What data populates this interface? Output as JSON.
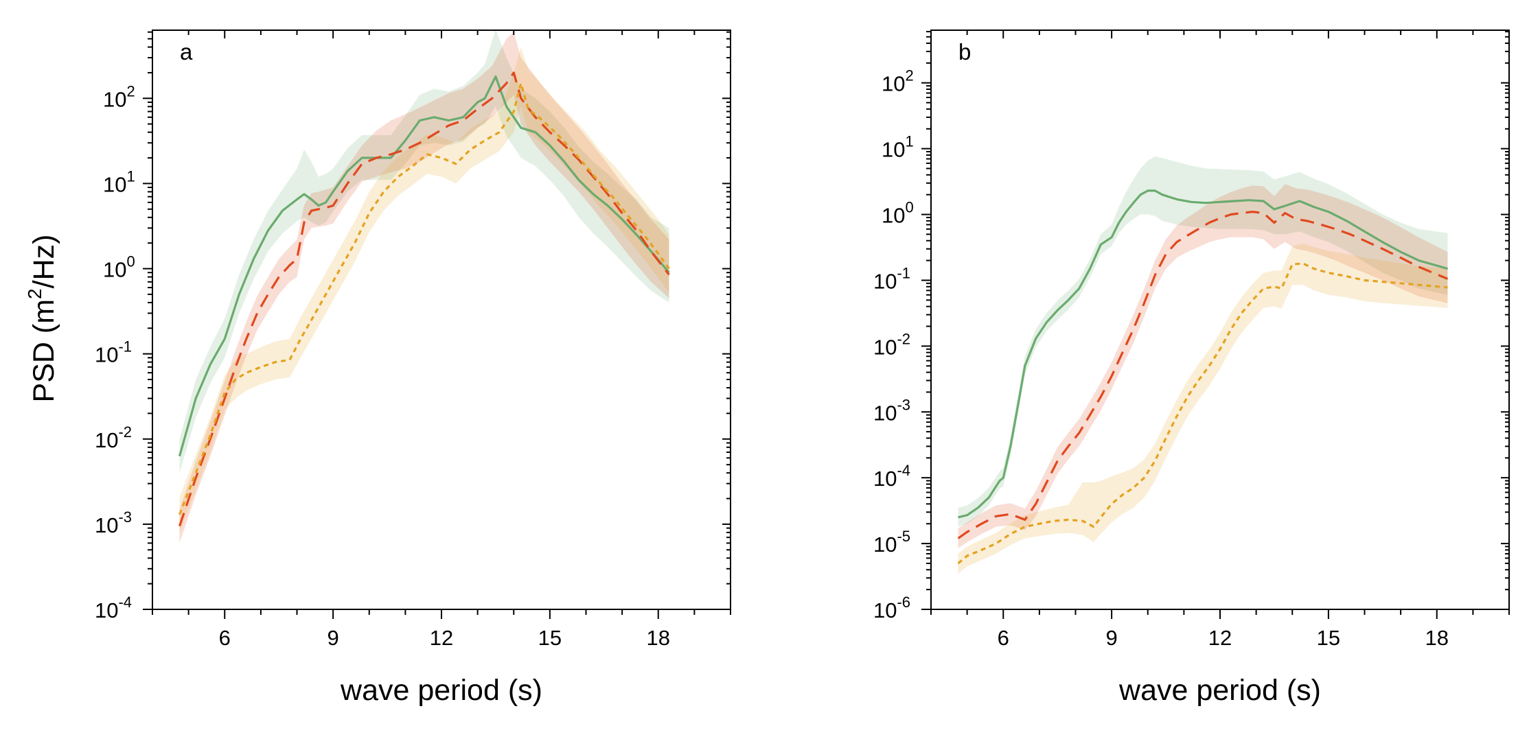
{
  "ylabel": "PSD (m²/Hz)",
  "colors": {
    "green": "#6aab6e",
    "red": "#e0491e",
    "orange": "#e4a21f"
  },
  "chart_data": [
    {
      "type": "line",
      "panel_label": "a",
      "xlabel": "wave period (s)",
      "ylabel": "PSD (m²/Hz)",
      "xlim": [
        4.0,
        20.0
      ],
      "x_ticks": [
        6,
        9,
        12,
        15,
        18
      ],
      "x_minor_step": 1,
      "y_scale": "log",
      "ylim_exp": [
        -4,
        2.8
      ],
      "y_ticks_exp": [
        -4,
        -3,
        -2,
        -1,
        0,
        1,
        2
      ],
      "grid": false,
      "series": [
        {
          "color": "green",
          "style": "solid",
          "x": [
            4.75,
            5.2,
            5.6,
            6.0,
            6.4,
            6.8,
            7.2,
            7.6,
            8.0,
            8.2,
            8.4,
            8.6,
            8.8,
            9.0,
            9.4,
            9.8,
            10.2,
            10.6,
            11.0,
            11.4,
            11.8,
            12.2,
            12.6,
            13.0,
            13.2,
            13.5,
            13.8,
            14.2,
            14.6,
            15.0,
            15.4,
            15.8,
            16.2,
            16.6,
            17.0,
            17.4,
            17.8,
            18.3
          ],
          "y": [
            0.0063,
            0.03,
            0.075,
            0.15,
            0.5,
            1.3,
            2.8,
            4.8,
            6.5,
            7.5,
            6.5,
            5.5,
            6.0,
            8.0,
            14,
            20,
            20,
            20,
            32,
            55,
            60,
            55,
            60,
            90,
            100,
            180,
            80,
            45,
            40,
            28,
            18,
            11,
            7.5,
            5.5,
            3.8,
            2.5,
            1.6,
            0.9
          ],
          "band_lo": [
            0.004,
            0.018,
            0.045,
            0.09,
            0.3,
            0.75,
            1.6,
            2.6,
            3.6,
            4.0,
            3.5,
            3.2,
            3.5,
            4.7,
            8,
            11,
            11,
            11,
            17,
            28,
            30,
            28,
            31,
            45,
            50,
            80,
            36,
            20,
            16,
            11,
            7,
            4,
            2.6,
            1.8,
            1.2,
            0.8,
            0.55,
            0.4
          ],
          "band_hi": [
            0.01,
            0.05,
            0.12,
            0.26,
            0.85,
            2.2,
            4.8,
            8.5,
            15,
            25,
            18,
            12,
            13,
            15,
            26,
            37,
            37,
            37,
            63,
            110,
            130,
            120,
            140,
            200,
            250,
            650,
            300,
            130,
            100,
            70,
            45,
            27,
            18,
            13,
            9,
            6.5,
            4,
            3.0
          ]
        },
        {
          "color": "red",
          "style": "dash",
          "x": [
            4.75,
            5.2,
            5.6,
            6.0,
            6.3,
            6.6,
            6.9,
            7.2,
            7.5,
            7.8,
            8.0,
            8.2,
            8.4,
            8.6,
            8.8,
            9.0,
            9.4,
            9.8,
            10.2,
            10.6,
            11.0,
            11.4,
            11.8,
            12.2,
            12.6,
            13.0,
            13.4,
            13.8,
            14.0,
            14.2,
            14.6,
            15.0,
            15.4,
            15.8,
            16.2,
            16.6,
            17.0,
            17.4,
            17.8,
            18.3
          ],
          "y": [
            0.00095,
            0.0035,
            0.01,
            0.03,
            0.07,
            0.15,
            0.3,
            0.5,
            0.8,
            1.1,
            1.3,
            3.5,
            4.8,
            5.0,
            5.2,
            5.5,
            10,
            17,
            20,
            22,
            25,
            30,
            38,
            48,
            55,
            75,
            100,
            150,
            200,
            100,
            60,
            40,
            28,
            19,
            12,
            7.5,
            4.5,
            2.8,
            1.6,
            0.85
          ],
          "band_lo": [
            0.0006,
            0.0022,
            0.0062,
            0.019,
            0.044,
            0.095,
            0.19,
            0.31,
            0.5,
            0.7,
            0.8,
            2.2,
            3.0,
            3.1,
            3.2,
            3.4,
            6.2,
            10.5,
            12,
            13.5,
            15,
            18,
            23,
            29,
            33,
            45,
            60,
            90,
            110,
            50,
            28,
            18,
            12,
            8,
            5,
            3,
            1.8,
            1.1,
            0.7,
            0.45
          ],
          "band_hi": [
            0.0015,
            0.0055,
            0.016,
            0.048,
            0.11,
            0.24,
            0.48,
            0.8,
            1.3,
            1.8,
            2.2,
            5.6,
            7.7,
            8.0,
            8.5,
            9,
            16,
            28,
            42,
            55,
            65,
            78,
            95,
            115,
            130,
            170,
            240,
            500,
            600,
            300,
            180,
            110,
            70,
            45,
            28,
            17,
            10,
            6.2,
            3.8,
            2.2
          ]
        },
        {
          "color": "orange",
          "style": "dot",
          "x": [
            4.75,
            5.2,
            5.6,
            6.0,
            6.3,
            6.6,
            7.0,
            7.4,
            7.8,
            8.1,
            8.4,
            8.8,
            9.2,
            9.6,
            10.0,
            10.4,
            10.8,
            11.2,
            11.6,
            12.0,
            12.4,
            12.8,
            13.2,
            13.6,
            14.0,
            14.2,
            14.4,
            14.8,
            15.2,
            15.6,
            16.0,
            16.4,
            16.8,
            17.2,
            17.6,
            18.0,
            18.3
          ],
          "y": [
            0.0013,
            0.004,
            0.011,
            0.035,
            0.05,
            0.06,
            0.07,
            0.08,
            0.085,
            0.15,
            0.25,
            0.5,
            1.0,
            2.0,
            4.5,
            8.0,
            12,
            16,
            22,
            20,
            17,
            25,
            32,
            40,
            70,
            150,
            75,
            55,
            38,
            25,
            16,
            10,
            6.5,
            4.0,
            2.5,
            1.5,
            1.0
          ],
          "band_lo": [
            0.0008,
            0.0025,
            0.007,
            0.022,
            0.03,
            0.037,
            0.044,
            0.05,
            0.053,
            0.09,
            0.15,
            0.3,
            0.6,
            1.2,
            2.7,
            4.8,
            7.2,
            9.6,
            13,
            12,
            10,
            15,
            19,
            24,
            40,
            80,
            40,
            29,
            20,
            13,
            8.3,
            5.2,
            3.4,
            2.1,
            1.3,
            0.78,
            0.52
          ],
          "band_hi": [
            0.0021,
            0.0065,
            0.018,
            0.056,
            0.085,
            0.1,
            0.12,
            0.14,
            0.15,
            0.27,
            0.45,
            0.9,
            1.8,
            3.6,
            8,
            14,
            21,
            28,
            38,
            35,
            30,
            44,
            56,
            70,
            200,
            400,
            220,
            140,
            90,
            60,
            40,
            24,
            16,
            10,
            6.2,
            3.8,
            2.5
          ]
        }
      ]
    },
    {
      "type": "line",
      "panel_label": "b",
      "xlabel": "wave period (s)",
      "ylabel": "",
      "xlim": [
        4.0,
        20.0
      ],
      "x_ticks": [
        6,
        9,
        12,
        15,
        18
      ],
      "x_minor_step": 1,
      "y_scale": "log",
      "ylim_exp": [
        -6,
        2.8
      ],
      "y_ticks_exp": [
        -6,
        -5,
        -4,
        -3,
        -2,
        -1,
        0,
        1,
        2
      ],
      "grid": false,
      "series": [
        {
          "color": "green",
          "style": "solid",
          "x": [
            4.75,
            5.0,
            5.3,
            5.6,
            5.9,
            6.0,
            6.2,
            6.4,
            6.6,
            6.9,
            7.2,
            7.5,
            7.8,
            8.1,
            8.4,
            8.7,
            9.0,
            9.2,
            9.4,
            9.6,
            9.8,
            10.0,
            10.2,
            10.4,
            10.8,
            11.2,
            11.6,
            12.0,
            12.4,
            12.8,
            13.2,
            13.5,
            13.8,
            14.2,
            14.6,
            15.0,
            15.5,
            16.0,
            16.5,
            17.0,
            17.5,
            18.3
          ],
          "y": [
            2.5e-05,
            2.7e-05,
            3.5e-05,
            5e-05,
            9e-05,
            0.0001,
            0.0003,
            0.0012,
            0.005,
            0.013,
            0.023,
            0.035,
            0.05,
            0.075,
            0.15,
            0.35,
            0.45,
            0.75,
            1.1,
            1.5,
            2.0,
            2.3,
            2.3,
            2.0,
            1.7,
            1.55,
            1.5,
            1.55,
            1.6,
            1.65,
            1.6,
            1.2,
            1.35,
            1.6,
            1.3,
            1.1,
            0.8,
            0.55,
            0.38,
            0.27,
            0.2,
            0.15
          ],
          "band_lo": [
            1.8e-05,
            2e-05,
            2.6e-05,
            3.8e-05,
            6.8e-05,
            7.5e-05,
            0.00022,
            0.0009,
            0.0037,
            0.0095,
            0.017,
            0.025,
            0.036,
            0.055,
            0.11,
            0.25,
            0.33,
            0.52,
            0.7,
            0.85,
            1.0,
            1.0,
            0.95,
            0.8,
            0.7,
            0.65,
            0.62,
            0.6,
            0.6,
            0.6,
            0.58,
            0.5,
            0.5,
            0.55,
            0.45,
            0.38,
            0.28,
            0.19,
            0.13,
            0.1,
            0.075,
            0.06
          ],
          "band_hi": [
            3.5e-05,
            3.8e-05,
            4.9e-05,
            7e-05,
            0.000125,
            0.00014,
            0.00042,
            0.0017,
            0.007,
            0.018,
            0.032,
            0.049,
            0.07,
            0.105,
            0.21,
            0.5,
            0.7,
            1.3,
            2.2,
            3.4,
            5.0,
            6.6,
            7.6,
            7.2,
            6.3,
            5.5,
            5.0,
            4.9,
            4.8,
            4.7,
            4.5,
            3.4,
            3.8,
            4.4,
            3.5,
            2.9,
            2.1,
            1.45,
            1.0,
            0.75,
            0.6,
            0.52
          ]
        },
        {
          "color": "red",
          "style": "dash",
          "x": [
            4.75,
            5.0,
            5.4,
            5.8,
            6.2,
            6.6,
            6.9,
            7.2,
            7.5,
            7.8,
            8.1,
            8.4,
            8.7,
            9.0,
            9.3,
            9.6,
            9.9,
            10.2,
            10.5,
            10.8,
            11.1,
            11.4,
            11.7,
            12.0,
            12.3,
            12.6,
            12.9,
            13.2,
            13.5,
            13.8,
            14.1,
            14.4,
            14.8,
            15.2,
            15.6,
            16.0,
            16.5,
            17.0,
            17.5,
            18.3
          ],
          "y": [
            1.2e-05,
            1.5e-05,
            2e-05,
            2.6e-05,
            2.8e-05,
            2.3e-05,
            4e-05,
            8.5e-05,
            0.00018,
            0.0003,
            0.00048,
            0.0009,
            0.0017,
            0.0035,
            0.008,
            0.018,
            0.045,
            0.12,
            0.25,
            0.38,
            0.48,
            0.6,
            0.75,
            0.88,
            1.0,
            1.05,
            1.1,
            1.05,
            0.75,
            1.05,
            0.85,
            0.8,
            0.7,
            0.6,
            0.5,
            0.4,
            0.3,
            0.22,
            0.16,
            0.105
          ],
          "band_lo": [
            8.5e-06,
            1.05e-05,
            1.4e-05,
            1.8e-05,
            1.9e-05,
            1.6e-05,
            2.6e-05,
            5.4e-05,
            0.000115,
            0.00019,
            0.0003,
            0.00056,
            0.00105,
            0.0022,
            0.005,
            0.011,
            0.028,
            0.075,
            0.15,
            0.22,
            0.27,
            0.32,
            0.38,
            0.42,
            0.45,
            0.45,
            0.45,
            0.42,
            0.3,
            0.38,
            0.3,
            0.28,
            0.24,
            0.2,
            0.16,
            0.13,
            0.1,
            0.075,
            0.057,
            0.045
          ],
          "band_hi": [
            1.7e-05,
            2.1e-05,
            2.9e-05,
            3.8e-05,
            4.1e-05,
            3.4e-05,
            6.3e-05,
            0.000135,
            0.00029,
            0.00048,
            0.00078,
            0.00145,
            0.0028,
            0.0057,
            0.013,
            0.03,
            0.075,
            0.2,
            0.42,
            0.68,
            0.9,
            1.15,
            1.5,
            1.85,
            2.2,
            2.5,
            2.75,
            2.7,
            1.9,
            2.9,
            2.5,
            2.4,
            2.1,
            1.8,
            1.5,
            1.2,
            0.9,
            0.64,
            0.45,
            0.27
          ]
        },
        {
          "color": "orange",
          "style": "dot",
          "x": [
            4.75,
            5.0,
            5.4,
            5.8,
            6.2,
            6.6,
            7.0,
            7.4,
            7.8,
            8.2,
            8.5,
            8.7,
            9.0,
            9.3,
            9.6,
            9.9,
            10.2,
            10.5,
            10.8,
            11.1,
            11.4,
            11.7,
            12.0,
            12.3,
            12.6,
            12.9,
            13.2,
            13.5,
            13.7,
            14.0,
            14.3,
            14.6,
            15.0,
            15.5,
            16.0,
            16.5,
            17.0,
            17.5,
            18.3
          ],
          "y": [
            5e-06,
            6.5e-06,
            8e-06,
            1e-05,
            1.4e-05,
            1.8e-05,
            2e-05,
            2.2e-05,
            2.3e-05,
            2.2e-05,
            1.8e-05,
            2.5e-05,
            4e-05,
            5.5e-05,
            7e-05,
            0.0001,
            0.00018,
            0.0004,
            0.00085,
            0.0017,
            0.003,
            0.005,
            0.009,
            0.018,
            0.032,
            0.05,
            0.075,
            0.08,
            0.075,
            0.175,
            0.18,
            0.15,
            0.13,
            0.115,
            0.1,
            0.095,
            0.09,
            0.085,
            0.078
          ],
          "band_lo": [
            3.5e-06,
            4.5e-06,
            5.6e-06,
            7e-06,
            9.5e-06,
            1.2e-05,
            1.3e-05,
            1.4e-05,
            1.45e-05,
            1.35e-05,
            1.05e-05,
            1.4e-05,
            2.1e-05,
            2.8e-05,
            3.5e-05,
            5e-05,
            9e-05,
            0.0002,
            0.00042,
            0.00085,
            0.0015,
            0.0025,
            0.0045,
            0.009,
            0.016,
            0.025,
            0.038,
            0.04,
            0.037,
            0.085,
            0.085,
            0.07,
            0.06,
            0.055,
            0.048,
            0.045,
            0.043,
            0.041,
            0.038
          ],
          "band_hi": [
            7e-06,
            9e-06,
            1.15e-05,
            1.45e-05,
            2.05e-05,
            2.7e-05,
            3.1e-05,
            3.5e-05,
            3.9e-05,
            8.5e-05,
            8.5e-05,
            9e-05,
            0.000105,
            0.00012,
            0.00014,
            0.00019,
            0.00033,
            0.00072,
            0.0015,
            0.003,
            0.0053,
            0.0088,
            0.016,
            0.032,
            0.056,
            0.088,
            0.13,
            0.14,
            0.14,
            0.33,
            0.36,
            0.32,
            0.28,
            0.25,
            0.22,
            0.2,
            0.18,
            0.165,
            0.15
          ]
        }
      ]
    }
  ]
}
